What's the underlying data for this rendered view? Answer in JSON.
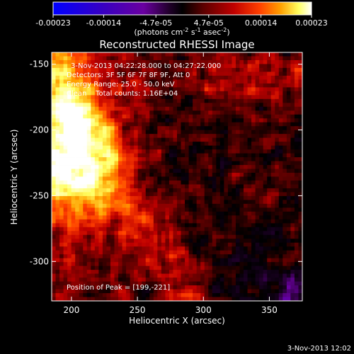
{
  "colorbar": {
    "ticks": [
      "-0.00023",
      "-0.00014",
      "-4.7e-05",
      "4.7e-05",
      "0.00014",
      "0.00023"
    ],
    "tick_values": [
      -0.00023,
      -0.00014,
      -4.7e-05,
      4.7e-05,
      0.00014,
      0.00023
    ],
    "range": [
      -0.00023,
      0.00023
    ],
    "unit_main": "(photons cm",
    "unit_exp1": "-2",
    "unit_mid": " s",
    "unit_exp2": "-1",
    "unit_tail": " asec",
    "unit_exp3": "-2",
    "unit_close": ")",
    "colors": [
      "#0000ff",
      "#3a00c0",
      "#6a00a0",
      "#20002a",
      "#000000",
      "#5a0000",
      "#c00000",
      "#ff4000",
      "#ffa000",
      "#ffff60",
      "#ffffff"
    ]
  },
  "chart_data": {
    "type": "heatmap",
    "title": "Reconstructed RHESSI Image",
    "xlabel": "Heliocentric X (arcsec)",
    "ylabel": "Heliocentric Y (arcsec)",
    "xlim": [
      185,
      375
    ],
    "ylim": [
      -330,
      -141
    ],
    "xticks": [
      200,
      250,
      300,
      350
    ],
    "yticks": [
      -150,
      -200,
      -250,
      -300
    ],
    "annotations": [
      "3-Nov-2013 04:22:28.000 to 04:27:22.000",
      "Detectors: 3F 5F 6F 7F 8F 9F, Att 0",
      "Energy Range: 25.0 - 50.0 keV",
      "Clean    Total counts: 1.16E+04"
    ],
    "peak_label": "Position of Peak = [199,-221]",
    "peak": [
      199,
      -221
    ]
  },
  "timestamp": "3-Nov-2013 12:02"
}
